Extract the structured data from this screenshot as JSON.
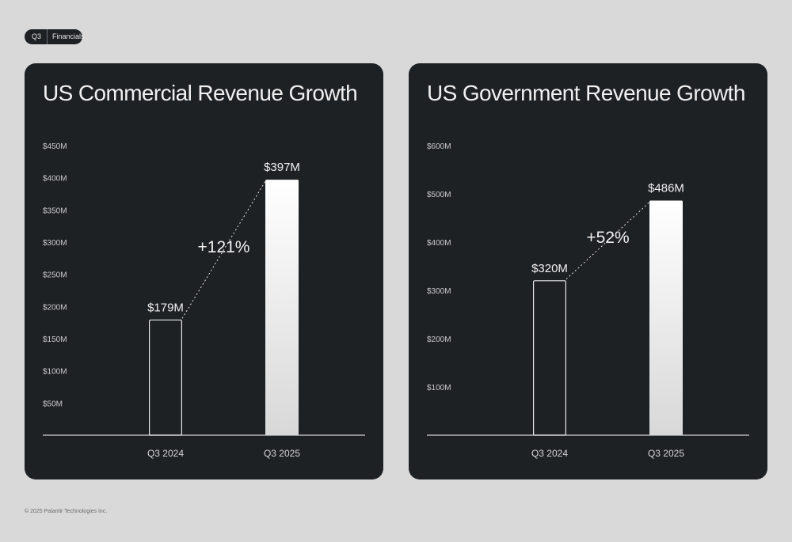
{
  "header": {
    "quarter": "Q3",
    "section": "Financials"
  },
  "footer": {
    "copyright": "© 2025 Palantir Technologies Inc."
  },
  "chart_data": [
    {
      "type": "bar",
      "title": "US Commercial Revenue Growth",
      "categories": [
        "Q3 2024",
        "Q3 2025"
      ],
      "values": [
        179,
        397
      ],
      "value_labels": [
        "$179M",
        "$397M"
      ],
      "growth_label": "+121%",
      "unit": "$M",
      "yticks": [
        50,
        100,
        150,
        200,
        250,
        300,
        350,
        400,
        450
      ],
      "ytick_labels": [
        "$50M",
        "$100M",
        "$150M",
        "$200M",
        "$250M",
        "$300M",
        "$350M",
        "$400M",
        "$450M"
      ],
      "ylim": [
        0,
        450
      ],
      "grid": false,
      "bar_styles": [
        "outline",
        "gradient-fill"
      ],
      "colors": {
        "panel": "#1e2124",
        "text": "#f0f0f0",
        "bar_top": "#ffffff",
        "bar_bottom": "#d8d8d8"
      }
    },
    {
      "type": "bar",
      "title": "US Government Revenue Growth",
      "categories": [
        "Q3 2024",
        "Q3 2025"
      ],
      "values": [
        320,
        486
      ],
      "value_labels": [
        "$320M",
        "$486M"
      ],
      "growth_label": "+52%",
      "unit": "$M",
      "yticks": [
        100,
        200,
        300,
        400,
        500,
        600
      ],
      "ytick_labels": [
        "$100M",
        "$200M",
        "$300M",
        "$400M",
        "$500M",
        "$600M"
      ],
      "ylim": [
        0,
        600
      ],
      "grid": false,
      "bar_styles": [
        "outline",
        "gradient-fill"
      ],
      "colors": {
        "panel": "#1e2124",
        "text": "#f0f0f0",
        "bar_top": "#ffffff",
        "bar_bottom": "#d8d8d8"
      }
    }
  ]
}
